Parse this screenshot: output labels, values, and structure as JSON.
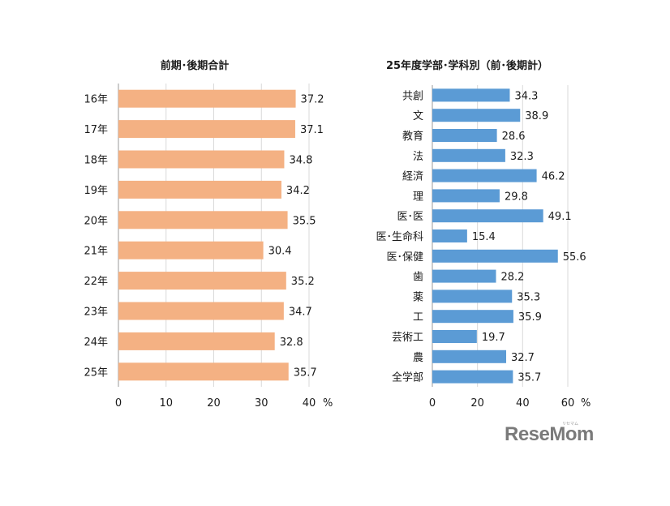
{
  "chart_data": [
    {
      "type": "bar",
      "orientation": "horizontal",
      "title": "前期･後期合計",
      "categories": [
        "16年",
        "17年",
        "18年",
        "19年",
        "20年",
        "21年",
        "22年",
        "23年",
        "24年",
        "25年"
      ],
      "values": [
        37.2,
        37.1,
        34.8,
        34.2,
        35.5,
        30.4,
        35.2,
        34.7,
        32.8,
        35.7
      ],
      "value_labels": [
        "37.2",
        "37.1",
        "34.8",
        "34.2",
        "35.5",
        "30.4",
        "35.2",
        "34.7",
        "32.8",
        "35.7"
      ],
      "xlim": [
        0,
        40
      ],
      "xticks": [
        "0",
        "10",
        "20",
        "30",
        "40"
      ],
      "unit": "%",
      "grid": true,
      "color": "#F4B183"
    },
    {
      "type": "bar",
      "orientation": "horizontal",
      "title": "25年度学部･学科別（前･後期計）",
      "categories": [
        "共創",
        "文",
        "教育",
        "法",
        "経済",
        "理",
        "医･医",
        "医･生命科",
        "医･保健",
        "歯",
        "薬",
        "工",
        "芸術工",
        "農",
        "全学部"
      ],
      "values": [
        34.3,
        38.9,
        28.6,
        32.3,
        46.2,
        29.8,
        49.1,
        15.4,
        55.6,
        28.2,
        35.3,
        35.9,
        19.7,
        32.7,
        35.7
      ],
      "value_labels": [
        "34.3",
        "38.9",
        "28.6",
        "32.3",
        "46.2",
        "29.8",
        "49.1",
        "15.4",
        "55.6",
        "28.2",
        "35.3",
        "35.9",
        "19.7",
        "32.7",
        "35.7"
      ],
      "xlim": [
        0,
        60
      ],
      "xticks": [
        "0",
        "20",
        "40",
        "60"
      ],
      "unit": "%",
      "grid": true,
      "color": "#5B9BD5"
    }
  ],
  "logo": {
    "text": "ReseMom",
    "sub": "リセマム"
  }
}
